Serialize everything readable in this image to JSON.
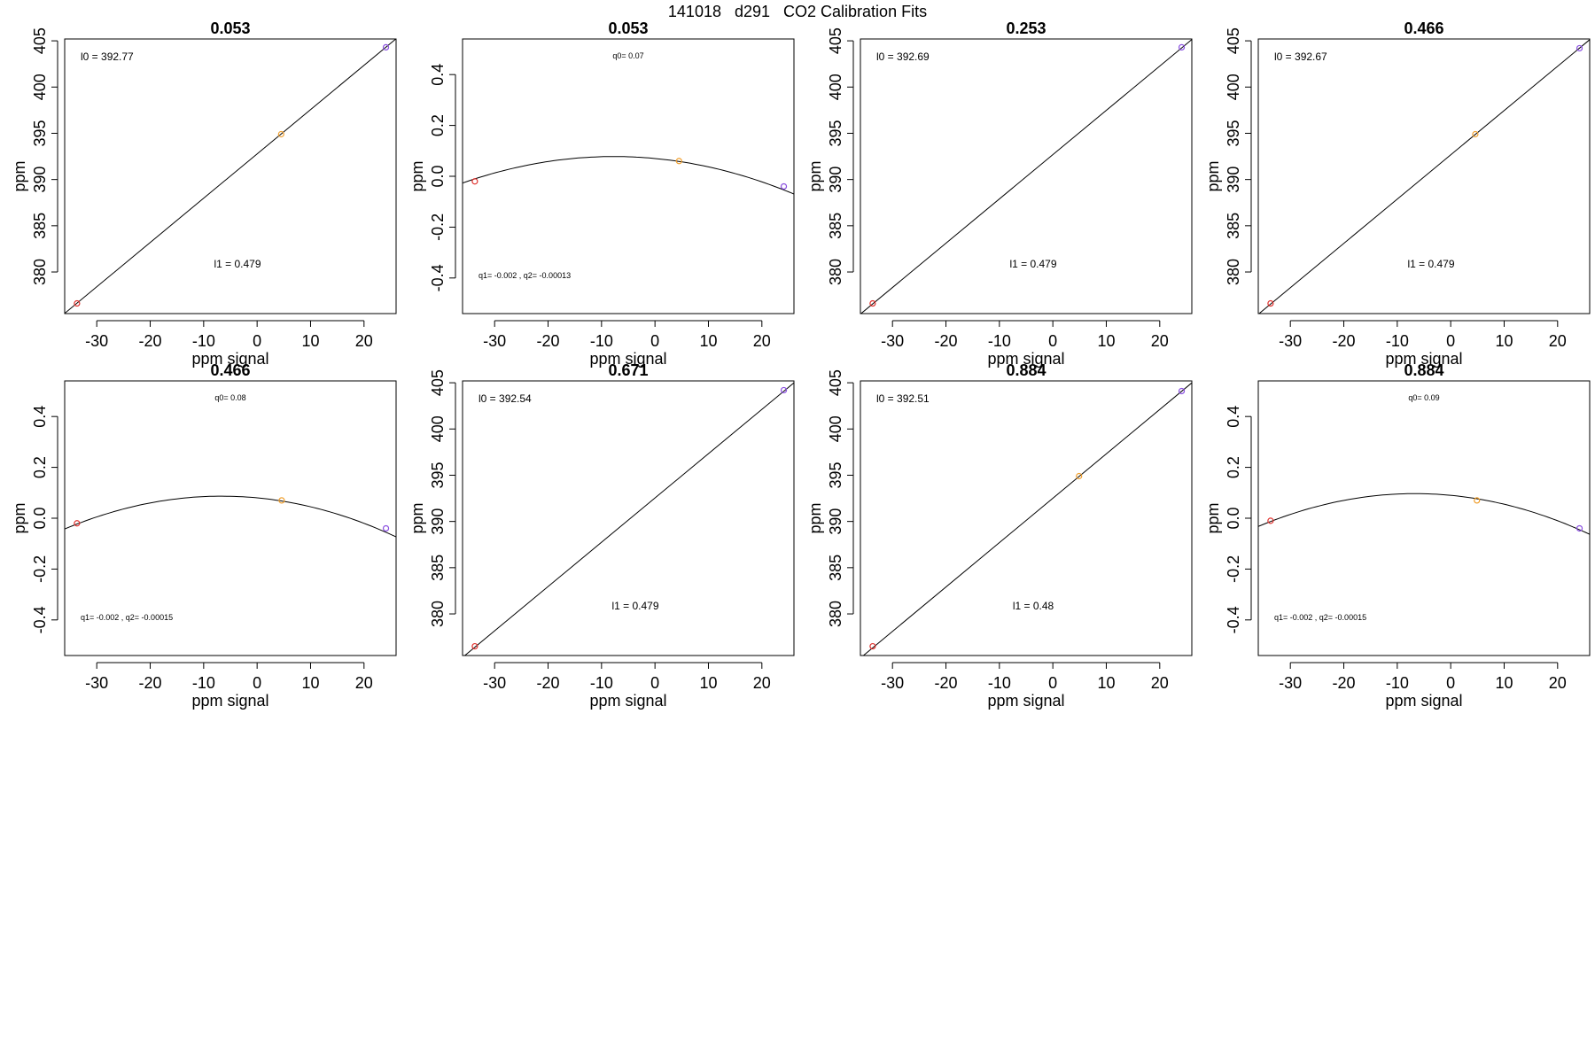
{
  "figure_title": "141018   d291   CO2 Calibration Fits",
  "colors": {
    "point_low": "#e0302c",
    "point_mid": "#f0a030",
    "point_high": "#8a4fe0",
    "line": "#000000"
  },
  "chart_data": [
    {
      "type": "line",
      "title": "0.053",
      "fit": "linear",
      "xlabel": "ppm signal",
      "ylabel": "ppm",
      "xlim": [
        -36,
        26
      ],
      "ylim": [
        375.5,
        405.2
      ],
      "xticks": [
        -30,
        -20,
        -10,
        0,
        10,
        20
      ],
      "yticks": [
        380,
        385,
        390,
        395,
        400,
        405
      ],
      "x": [
        -33.7,
        4.5,
        24.1
      ],
      "y": [
        376.6,
        394.9,
        404.3
      ],
      "fit_line": {
        "intercept": 392.77,
        "slope": 0.479
      },
      "annotations": [
        {
          "text": "l0 =  392.77",
          "pos": "top-left"
        },
        {
          "text": "l1 =  0.479",
          "pos": "bottom-center"
        }
      ]
    },
    {
      "type": "line",
      "title": "0.053",
      "fit": "quadratic",
      "xlabel": "ppm signal",
      "ylabel": "ppm",
      "xlim": [
        -36,
        26
      ],
      "ylim": [
        -0.54,
        0.54
      ],
      "xticks": [
        -30,
        -20,
        -10,
        0,
        10,
        20
      ],
      "yticks": [
        -0.4,
        -0.2,
        0.0,
        0.2,
        0.4
      ],
      "x": [
        -33.7,
        4.5,
        24.1
      ],
      "y": [
        -0.02,
        0.06,
        -0.04
      ],
      "fit_curve": {
        "q0": 0.07,
        "q1": -0.002,
        "q2": -0.00013
      },
      "annotations": [
        {
          "text": "q0= 0.07",
          "pos": "top-center"
        },
        {
          "text": "q1= -0.002 , q2= -0.00013",
          "pos": "bottom-left"
        }
      ]
    },
    {
      "type": "line",
      "title": "0.253",
      "fit": "linear",
      "xlabel": "ppm signal",
      "ylabel": "ppm",
      "xlim": [
        -36,
        26
      ],
      "ylim": [
        375.5,
        405.2
      ],
      "xticks": [
        -30,
        -20,
        -10,
        0,
        10,
        20
      ],
      "yticks": [
        380,
        385,
        390,
        395,
        400,
        405
      ],
      "x": [
        -33.7,
        24.1
      ],
      "y": [
        376.6,
        404.3
      ],
      "fit_line": {
        "intercept": 392.69,
        "slope": 0.479
      },
      "annotations": [
        {
          "text": "l0 =  392.69",
          "pos": "top-left"
        },
        {
          "text": "l1 =  0.479",
          "pos": "bottom-center"
        }
      ]
    },
    {
      "type": "line",
      "title": "0.466",
      "fit": "linear",
      "xlabel": "ppm signal",
      "ylabel": "ppm",
      "xlim": [
        -36,
        26
      ],
      "ylim": [
        375.5,
        405.2
      ],
      "xticks": [
        -30,
        -20,
        -10,
        0,
        10,
        20
      ],
      "yticks": [
        380,
        385,
        390,
        395,
        400,
        405
      ],
      "x": [
        -33.7,
        4.6,
        24.1
      ],
      "y": [
        376.6,
        394.9,
        404.2
      ],
      "fit_line": {
        "intercept": 392.67,
        "slope": 0.479
      },
      "annotations": [
        {
          "text": "l0 =  392.67",
          "pos": "top-left"
        },
        {
          "text": "l1 =  0.479",
          "pos": "bottom-center"
        }
      ]
    },
    {
      "type": "line",
      "title": "0.466",
      "fit": "quadratic",
      "xlabel": "ppm signal",
      "ylabel": "ppm",
      "xlim": [
        -36,
        26
      ],
      "ylim": [
        -0.54,
        0.54
      ],
      "xticks": [
        -30,
        -20,
        -10,
        0,
        10,
        20
      ],
      "yticks": [
        -0.4,
        -0.2,
        0.0,
        0.2,
        0.4
      ],
      "x": [
        -33.7,
        4.6,
        24.1
      ],
      "y": [
        -0.02,
        0.07,
        -0.04
      ],
      "fit_curve": {
        "q0": 0.08,
        "q1": -0.002,
        "q2": -0.00015
      },
      "annotations": [
        {
          "text": "q0= 0.08",
          "pos": "top-center"
        },
        {
          "text": "q1= -0.002 , q2= -0.00015",
          "pos": "bottom-left"
        }
      ]
    },
    {
      "type": "line",
      "title": "0.671",
      "fit": "linear",
      "xlabel": "ppm signal",
      "ylabel": "ppm",
      "xlim": [
        -36,
        26
      ],
      "ylim": [
        375.5,
        405.2
      ],
      "xticks": [
        -30,
        -20,
        -10,
        0,
        10,
        20
      ],
      "yticks": [
        380,
        385,
        390,
        395,
        400,
        405
      ],
      "x": [
        -33.7,
        24.1
      ],
      "y": [
        376.5,
        404.2
      ],
      "fit_line": {
        "intercept": 392.54,
        "slope": 0.479
      },
      "annotations": [
        {
          "text": "l0 =  392.54",
          "pos": "top-left"
        },
        {
          "text": "l1 =  0.479",
          "pos": "bottom-center"
        }
      ]
    },
    {
      "type": "line",
      "title": "0.884",
      "fit": "linear",
      "xlabel": "ppm signal",
      "ylabel": "ppm",
      "xlim": [
        -36,
        26
      ],
      "ylim": [
        375.5,
        405.2
      ],
      "xticks": [
        -30,
        -20,
        -10,
        0,
        10,
        20
      ],
      "yticks": [
        380,
        385,
        390,
        395,
        400,
        405
      ],
      "x": [
        -33.7,
        4.9,
        24.1
      ],
      "y": [
        376.5,
        394.9,
        404.1
      ],
      "fit_line": {
        "intercept": 392.51,
        "slope": 0.48
      },
      "annotations": [
        {
          "text": "l0 =  392.51",
          "pos": "top-left"
        },
        {
          "text": "l1 =  0.48",
          "pos": "bottom-center"
        }
      ]
    },
    {
      "type": "line",
      "title": "0.884",
      "fit": "quadratic",
      "xlabel": "ppm signal",
      "ylabel": "ppm",
      "xlim": [
        -36,
        26
      ],
      "ylim": [
        -0.54,
        0.54
      ],
      "xticks": [
        -30,
        -20,
        -10,
        0,
        10,
        20
      ],
      "yticks": [
        -0.4,
        -0.2,
        0.0,
        0.2,
        0.4
      ],
      "x": [
        -33.7,
        4.9,
        24.1
      ],
      "y": [
        -0.01,
        0.07,
        -0.04
      ],
      "fit_curve": {
        "q0": 0.09,
        "q1": -0.002,
        "q2": -0.00015
      },
      "annotations": [
        {
          "text": "q0= 0.09",
          "pos": "top-center"
        },
        {
          "text": "q1= -0.002 , q2= -0.00015",
          "pos": "bottom-left"
        }
      ]
    }
  ]
}
